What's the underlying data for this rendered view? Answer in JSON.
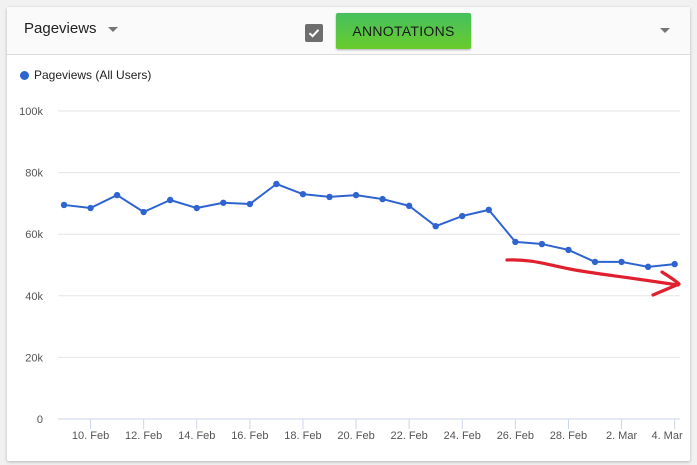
{
  "header": {
    "metric_label": "Pageviews",
    "annotations_checked": true,
    "annotations_label": "ANNOTATIONS"
  },
  "legend": {
    "label": "Pageviews (All Users)",
    "color": "#2f64d0"
  },
  "colors": {
    "series": "#2f64d0",
    "annotation_arrow": "#e0202e",
    "button_top": "#45c05f",
    "button_bottom": "#69cc2c"
  },
  "chart_data": {
    "type": "line",
    "title": "",
    "xlabel": "",
    "ylabel": "",
    "ylim": [
      0,
      100000
    ],
    "yticks": [
      0,
      20000,
      40000,
      60000,
      80000,
      100000
    ],
    "ytick_labels": [
      "0",
      "20k",
      "40k",
      "60k",
      "80k",
      "100k"
    ],
    "xtick_labels": [
      "10. Feb",
      "12. Feb",
      "14. Feb",
      "16. Feb",
      "18. Feb",
      "20. Feb",
      "22. Feb",
      "24. Feb",
      "26. Feb",
      "28. Feb",
      "2. Mar",
      "4. Mar"
    ],
    "grid": true,
    "legend_position": "top-left",
    "x": [
      "9. Feb",
      "10. Feb",
      "11. Feb",
      "12. Feb",
      "13. Feb",
      "14. Feb",
      "15. Feb",
      "16. Feb",
      "17. Feb",
      "18. Feb",
      "19. Feb",
      "20. Feb",
      "21. Feb",
      "22. Feb",
      "23. Feb",
      "24. Feb",
      "25. Feb",
      "26. Feb",
      "27. Feb",
      "28. Feb",
      "1. Mar",
      "2. Mar",
      "3. Mar",
      "4. Mar"
    ],
    "series": [
      {
        "name": "Pageviews (All Users)",
        "values": [
          69500,
          68500,
          72700,
          67200,
          71100,
          68500,
          70200,
          69800,
          76300,
          73000,
          72100,
          72700,
          71400,
          69200,
          62600,
          65900,
          67900,
          57500,
          56800,
          54900,
          51000,
          51000,
          49400,
          50300
        ]
      }
    ],
    "annotations": [
      "hand-drawn red arrow indicating downward trend from 26. Feb to 4. Mar"
    ]
  }
}
